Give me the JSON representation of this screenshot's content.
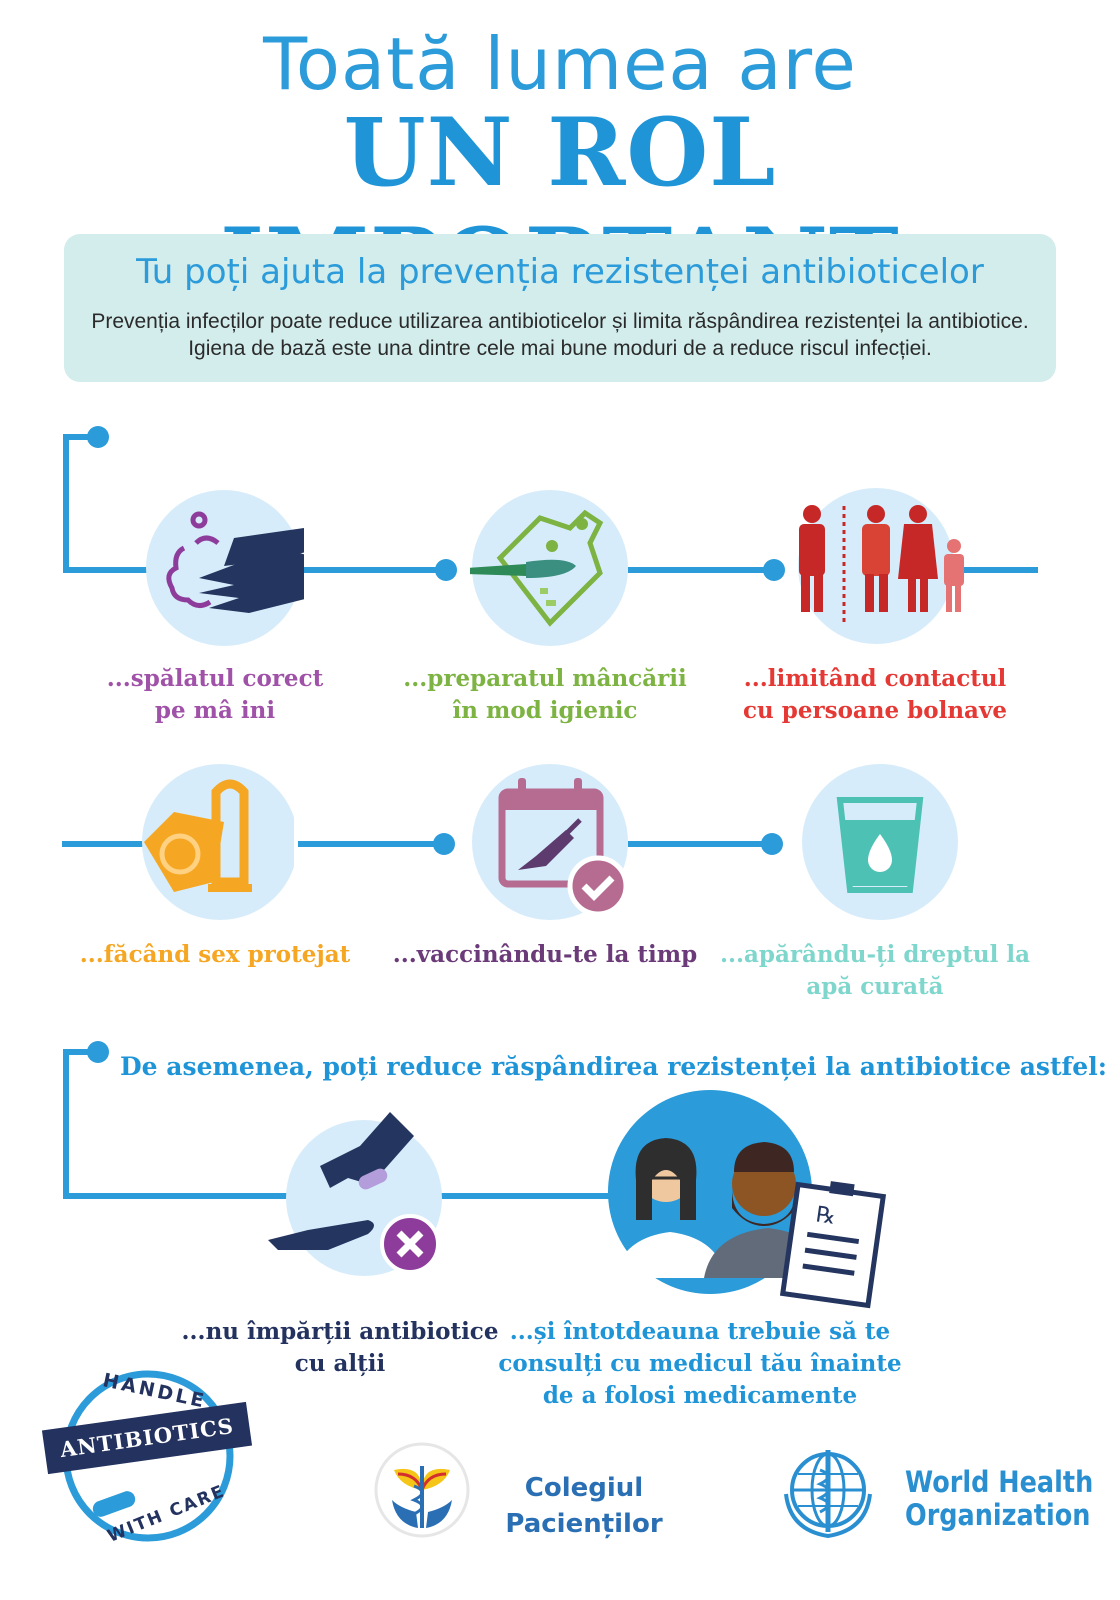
{
  "header": {
    "line1": "Toată lumea are",
    "line2": "UN ROL IMPORTANT"
  },
  "infobox": {
    "title": "Tu poți ajuta la prevenția rezistenței antibioticelor",
    "text": "Prevenția infecților poate reduce utilizarea antibioticelor și limita răspândirea rezistenței la antibiotice. Igiena de bază este una dintre cele mai bune moduri de a reduce riscul infecției."
  },
  "actions": [
    {
      "line1": "...spălatul corect",
      "line2": "pe mâ ini",
      "color": "#a051a8",
      "icon": "hand-washing-icon"
    },
    {
      "line1": "...preparatul mâncării",
      "line2": "în mod igienic",
      "color": "#7cb342",
      "icon": "food-preparation-icon"
    },
    {
      "line1": "...limitând contactul",
      "line2": "cu persoane bolnave",
      "color": "#e53935",
      "icon": "people-distance-icon"
    },
    {
      "line1": "...făcând sex protejat",
      "line2": "",
      "color": "#f5a623",
      "icon": "condom-icon"
    },
    {
      "line1": "...vaccinându-te la timp",
      "line2": "",
      "color": "#6b3a78",
      "icon": "vaccination-calendar-icon"
    },
    {
      "line1": "...apărându-ți dreptul la",
      "line2": "apă curată",
      "color": "#7ed6cc",
      "icon": "clean-water-icon"
    }
  ],
  "section2": {
    "title": "De asemenea, poți reduce răspândirea rezistenței la antibiotice astfel:"
  },
  "actions2": [
    {
      "line1": "...nu împărții antibiotice",
      "line2": "cu alții",
      "line3": "",
      "color": "#23325e",
      "icon": "no-sharing-pills-icon"
    },
    {
      "line1": "...și întotdeauna trebuie să te",
      "line2": "consulți cu medicul tău înainte",
      "line3": "de a folosi medicamente",
      "color": "#1f95d8",
      "icon": "doctor-consultation-icon"
    }
  ],
  "footer": {
    "badge_top": "HANDLE",
    "badge_middle": "ANTIBIOTICS",
    "badge_bottom": "WITH CARE",
    "colegiul_line1": "Colegiul",
    "colegiul_line2": "Pacienților",
    "who_line1": "World Health",
    "who_line2": "Organization"
  },
  "colors": {
    "primary_blue": "#1f95d8",
    "circle_bg": "#d6ecfa",
    "infobox_bg": "#d3ecec",
    "navy": "#23325e"
  }
}
